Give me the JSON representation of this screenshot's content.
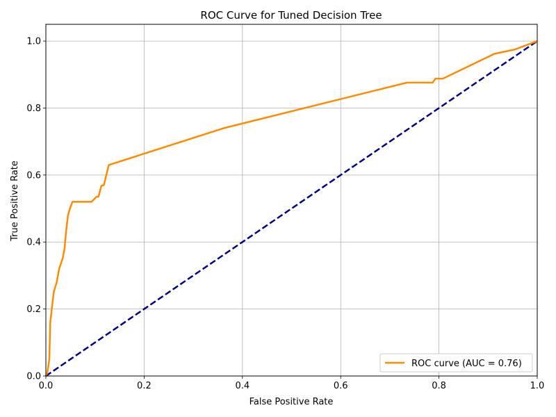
{
  "chart_data": {
    "type": "line",
    "title": "ROC Curve for Tuned Decision Tree",
    "xlabel": "False Positive Rate",
    "ylabel": "True Positive Rate",
    "xlim": [
      0.0,
      1.0
    ],
    "ylim": [
      0.0,
      1.05
    ],
    "x_ticks": [
      "0.0",
      "0.2",
      "0.4",
      "0.6",
      "0.8",
      "1.0"
    ],
    "y_ticks": [
      "0.0",
      "0.2",
      "0.4",
      "0.6",
      "0.8",
      "1.0"
    ],
    "grid": true,
    "legend_position": "lower-right",
    "series": [
      {
        "name": "ROC curve (AUC = 0.76)",
        "color": "#ff8c00",
        "style": "solid",
        "x": [
          0.0,
          0.003,
          0.007,
          0.009,
          0.012,
          0.016,
          0.022,
          0.027,
          0.034,
          0.038,
          0.041,
          0.045,
          0.049,
          0.054,
          0.058,
          0.09,
          0.093,
          0.103,
          0.107,
          0.113,
          0.118,
          0.128,
          0.362,
          0.735,
          0.787,
          0.793,
          0.808,
          0.913,
          0.955,
          1.0
        ],
        "y": [
          0.0,
          0.01,
          0.05,
          0.16,
          0.2,
          0.25,
          0.28,
          0.32,
          0.35,
          0.38,
          0.43,
          0.48,
          0.5,
          0.52,
          0.52,
          0.52,
          0.52,
          0.535,
          0.535,
          0.568,
          0.57,
          0.63,
          0.74,
          0.876,
          0.876,
          0.888,
          0.888,
          0.962,
          0.975,
          1.0
        ]
      },
      {
        "name": "",
        "color": "#000080",
        "style": "dashed",
        "x": [
          0.0,
          1.0
        ],
        "y": [
          0.0,
          1.0
        ]
      }
    ]
  }
}
